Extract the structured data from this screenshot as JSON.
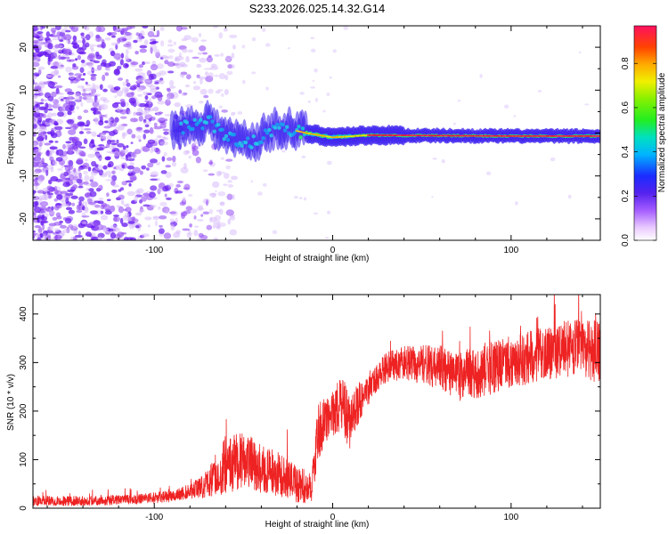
{
  "title": "S233.2026.025.14.32.G14",
  "colors": {
    "snr_line": "#ee2222",
    "spectro_dot": "#8a3df2",
    "axis": "#000000"
  },
  "chart_data": [
    {
      "type": "heatmap",
      "title": "S233.2026.025.14.32.G14",
      "xlabel": "Height of straight line (km)",
      "ylabel": "Frequency (Hz)",
      "xlim": [
        -168,
        150
      ],
      "ylim": [
        -25,
        25
      ],
      "x_ticks": [
        -100,
        0,
        100
      ],
      "y_ticks": [
        -20,
        -10,
        0,
        10,
        20
      ],
      "colorbar": {
        "label": "Normalized spectral amplitude",
        "range": [
          0,
          0.97
        ],
        "ticks": [
          0.0,
          0.2,
          0.4,
          0.6,
          0.8
        ],
        "colormap": "rainbow (white-violet-blue-cyan-green-yellow-orange-red)"
      },
      "features": {
        "noise_region_km": [
          -168,
          -65
        ],
        "signal_center_freq_hz": [
          {
            "x": -80,
            "y": 1.5
          },
          {
            "x": -70,
            "y": 3
          },
          {
            "x": -60,
            "y": -1
          },
          {
            "x": -45,
            "y": -2
          },
          {
            "x": -30,
            "y": 1.5
          },
          {
            "x": -15,
            "y": 0
          },
          {
            "x": 0,
            "y": -1
          },
          {
            "x": 20,
            "y": -0.5
          },
          {
            "x": 60,
            "y": -0.6
          },
          {
            "x": 100,
            "y": -0.7
          },
          {
            "x": 150,
            "y": -0.7
          }
        ],
        "peak_band_km": [
          -20,
          150
        ]
      }
    },
    {
      "type": "line",
      "xlabel": "Height of straight line (km)",
      "ylabel": "SNR (10 * v/v)",
      "xlim": [
        -168,
        150
      ],
      "ylim": [
        0,
        440
      ],
      "x_ticks": [
        -100,
        0,
        100
      ],
      "y_ticks": [
        0,
        100,
        200,
        300,
        400
      ],
      "series": [
        {
          "name": "SNR",
          "envelope_x": [
            -168,
            -140,
            -110,
            -90,
            -80,
            -70,
            -60,
            -50,
            -40,
            -30,
            -20,
            -12,
            -8,
            -2,
            5,
            10,
            15,
            20,
            25,
            30,
            40,
            50,
            60,
            70,
            80,
            90,
            100,
            110,
            120,
            130,
            140,
            150
          ],
          "mean_y": [
            15,
            15,
            18,
            25,
            35,
            50,
            90,
            100,
            80,
            70,
            50,
            40,
            160,
            190,
            210,
            180,
            220,
            240,
            270,
            290,
            300,
            295,
            290,
            270,
            280,
            290,
            300,
            310,
            320,
            330,
            330,
            320
          ],
          "spread_y": [
            10,
            10,
            10,
            12,
            15,
            30,
            60,
            60,
            50,
            45,
            40,
            30,
            60,
            40,
            60,
            60,
            40,
            30,
            30,
            30,
            35,
            40,
            45,
            50,
            55,
            55,
            50,
            55,
            55,
            60,
            60,
            65
          ]
        }
      ]
    }
  ]
}
